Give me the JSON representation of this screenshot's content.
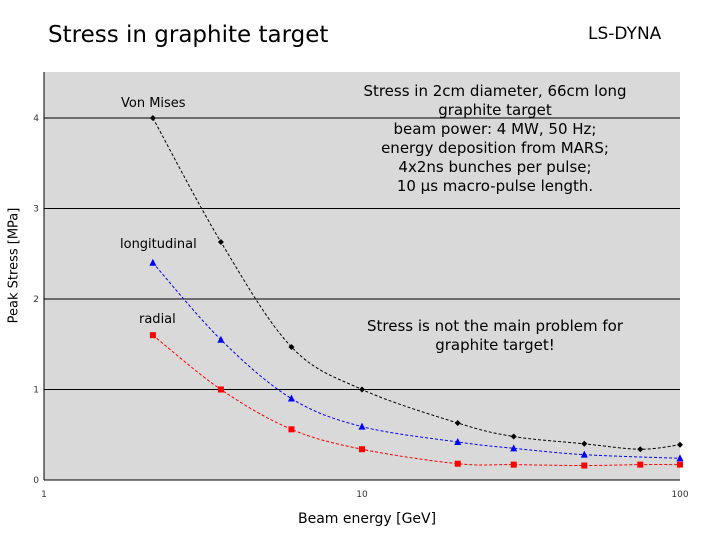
{
  "header": {
    "title": "Stress in graphite target",
    "tool": "LS-DYNA"
  },
  "notes": {
    "description": [
      "Stress in 2cm diameter, 66cm long",
      "graphite target",
      "beam power: 4 MW, 50 Hz;",
      "energy deposition from MARS;",
      "4x2ns bunches per pulse;",
      "10 µs macro-pulse length."
    ],
    "conclusion": [
      "Stress is not the main problem for",
      "graphite target!"
    ]
  },
  "chart_data": {
    "type": "scatter",
    "xscale": "log",
    "xlabel": "Beam energy [GeV]",
    "ylabel": "Peak Stress [MPa]",
    "xlim": [
      1,
      100
    ],
    "ylim": [
      0,
      4.5
    ],
    "x_ticks": [
      "1",
      "10",
      "100"
    ],
    "y_ticks": [
      "0",
      "1",
      "2",
      "3",
      "4"
    ],
    "grid": "horizontal",
    "series": [
      {
        "name": "Von Mises",
        "color": "#000000",
        "marker": "diamond",
        "x": [
          2.2,
          3.6,
          6,
          10,
          20,
          30,
          50,
          75,
          100
        ],
        "y": [
          4.0,
          2.63,
          1.47,
          1.0,
          0.63,
          0.48,
          0.4,
          0.34,
          0.39
        ]
      },
      {
        "name": "longitudinal",
        "color": "#0000ff",
        "marker": "triangle",
        "x": [
          2.2,
          3.6,
          6,
          10,
          20,
          30,
          50,
          100
        ],
        "y": [
          2.4,
          1.55,
          0.9,
          0.59,
          0.42,
          0.35,
          0.28,
          0.24
        ]
      },
      {
        "name": "radial",
        "color": "#ff0000",
        "marker": "square",
        "x": [
          2.2,
          3.6,
          6,
          10,
          20,
          30,
          50,
          75,
          100
        ],
        "y": [
          1.6,
          1.0,
          0.56,
          0.34,
          0.18,
          0.17,
          0.16,
          0.17,
          0.17
        ]
      }
    ]
  }
}
